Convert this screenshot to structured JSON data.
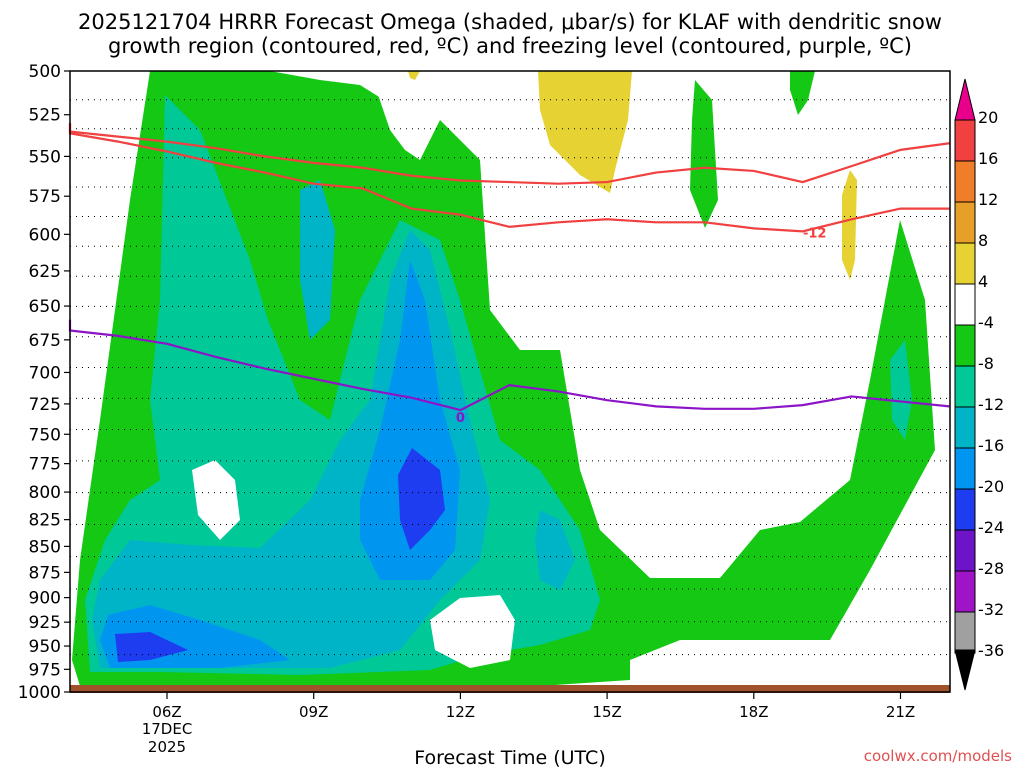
{
  "chart_data": {
    "type": "heatmap",
    "title_lines": [
      "2025121704 HRRR Forecast Omega (shaded, μbar/s) for KLAF with dendritic snow",
      "growth region (contoured, red, ºC) and freezing level (contoured, purple, ºC)"
    ],
    "xlabel": "Forecast Time (UTC)",
    "x_ticks": [
      "06Z",
      "09Z",
      "12Z",
      "15Z",
      "18Z",
      "21Z"
    ],
    "x_date_lines": [
      "17DEC",
      "2025"
    ],
    "y_ticks": [
      "500",
      "525",
      "550",
      "575",
      "600",
      "625",
      "650",
      "675",
      "700",
      "725",
      "750",
      "775",
      "800",
      "825",
      "850",
      "875",
      "900",
      "925",
      "950",
      "975",
      "1000"
    ],
    "colorbar": {
      "labels": [
        "20",
        "16",
        "12",
        "8",
        "4",
        "-4",
        "-8",
        "-12",
        "-16",
        "-20",
        "-24",
        "-28",
        "-32",
        "-36"
      ],
      "colors": [
        "#e8008c",
        "#f04040",
        "#f07d28",
        "#e6a028",
        "#e6d232",
        "#ffffff",
        "#14c814",
        "#00c896",
        "#00b4c8",
        "#0096f0",
        "#1e3cf0",
        "#6e14c8",
        "#a014c8",
        "#a0a0a0",
        "#000000"
      ]
    },
    "contours": [
      {
        "name": "dendritic-growth-upper",
        "color": "#f04040",
        "label": "",
        "x_hours": [
          3,
          4,
          5,
          6,
          7,
          8,
          9,
          10,
          11,
          12,
          13,
          14,
          15,
          16,
          17,
          18,
          19,
          20,
          21,
          22
        ],
        "pressure": [
          530,
          535,
          538,
          541,
          545,
          550,
          554,
          557,
          562,
          565,
          566,
          567,
          566,
          560,
          557,
          559,
          566,
          556,
          546,
          542
        ]
      },
      {
        "name": "dendritic-growth-lower",
        "color": "#f04040",
        "label": "-12",
        "x_hours": [
          3,
          4,
          5,
          6,
          7,
          8,
          9,
          10,
          11,
          12,
          13,
          14,
          15,
          16,
          17,
          18,
          19,
          20,
          21,
          22
        ],
        "pressure": [
          530,
          536,
          541,
          547,
          554,
          560,
          567,
          570,
          583,
          587,
          595,
          592,
          590,
          592,
          592,
          596,
          598,
          590,
          583,
          583
        ]
      },
      {
        "name": "freezing-level",
        "color": "#8c14c8",
        "label": "0",
        "x_hours": [
          3,
          4,
          5,
          6,
          7,
          8,
          9,
          10,
          11,
          12,
          13,
          14,
          15,
          16,
          17,
          18,
          19,
          20,
          21,
          22
        ],
        "pressure": [
          660,
          668,
          672,
          678,
          688,
          697,
          705,
          713,
          720,
          730,
          710,
          715,
          722,
          727,
          729,
          729,
          726,
          719,
          723,
          727
        ]
      }
    ],
    "footer": "coolwx.com/models"
  }
}
